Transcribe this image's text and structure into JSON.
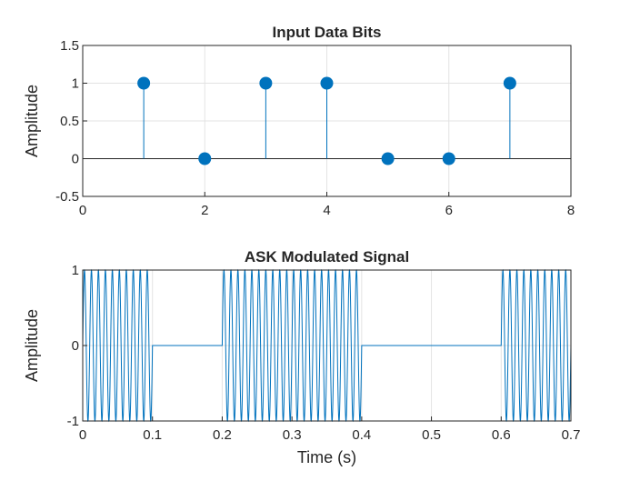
{
  "chart_data": [
    {
      "type": "stem",
      "title": "Input Data Bits",
      "xlabel": "",
      "ylabel": "Amplitude",
      "xlim": [
        0,
        8
      ],
      "ylim": [
        -0.5,
        1.5
      ],
      "xticks": [
        "0",
        "2",
        "4",
        "6",
        "8"
      ],
      "yticks": [
        "-0.5",
        "0",
        "0.5",
        "1",
        "1.5"
      ],
      "grid": true,
      "x": [
        1,
        2,
        3,
        4,
        5,
        6,
        7
      ],
      "y": [
        1,
        0,
        1,
        1,
        0,
        0,
        1
      ],
      "color": "#0072BD"
    },
    {
      "type": "line",
      "title": "ASK Modulated Signal",
      "xlabel": "Time (s)",
      "ylabel": "Amplitude",
      "xlim": [
        0,
        0.7
      ],
      "ylim": [
        -1,
        1
      ],
      "xticks": [
        "0",
        "0.1",
        "0.2",
        "0.3",
        "0.4",
        "0.5",
        "0.6",
        "0.7"
      ],
      "yticks": [
        "-1",
        "0",
        "1"
      ],
      "grid": true,
      "bits": [
        1,
        0,
        1,
        1,
        0,
        0,
        1
      ],
      "bit_duration": 0.1,
      "carrier_frequency_hz": 100,
      "amplitude": 1,
      "color": "#0072BD"
    }
  ]
}
